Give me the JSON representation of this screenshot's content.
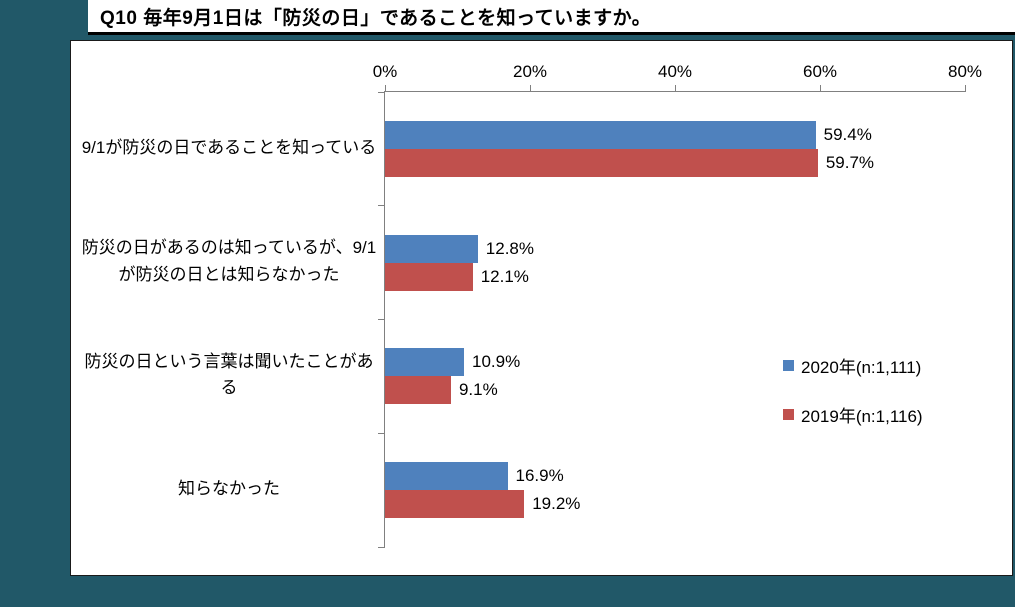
{
  "background_color": "#215868",
  "title": "Q10 毎年9月1日は「防災の日」であることを知っていますか。",
  "chart_data": {
    "type": "bar",
    "orientation": "horizontal",
    "title": "Q10 毎年9月1日は「防災の日」であることを知っていますか。",
    "categories": [
      "9/1が防災の日であることを知っている",
      "防災の日があるのは知っているが、9/1が防災の日とは知らなかった",
      "防災の日という言葉は聞いたことがある",
      "知らなかった"
    ],
    "series": [
      {
        "key": "2020",
        "name": "2020年(n:1,111)",
        "color": "#4f81bd",
        "values": [
          59.4,
          12.8,
          10.9,
          16.9
        ]
      },
      {
        "key": "2019",
        "name": "2019年(n:1,116)",
        "color": "#c0504d",
        "values": [
          59.7,
          12.1,
          9.1,
          19.2
        ]
      }
    ],
    "value_suffix": "%",
    "xlim": [
      0,
      80
    ],
    "x_ticks": [
      "0%",
      "20%",
      "40%",
      "60%",
      "80%"
    ],
    "grid": false,
    "legend_position": "right-middle"
  }
}
